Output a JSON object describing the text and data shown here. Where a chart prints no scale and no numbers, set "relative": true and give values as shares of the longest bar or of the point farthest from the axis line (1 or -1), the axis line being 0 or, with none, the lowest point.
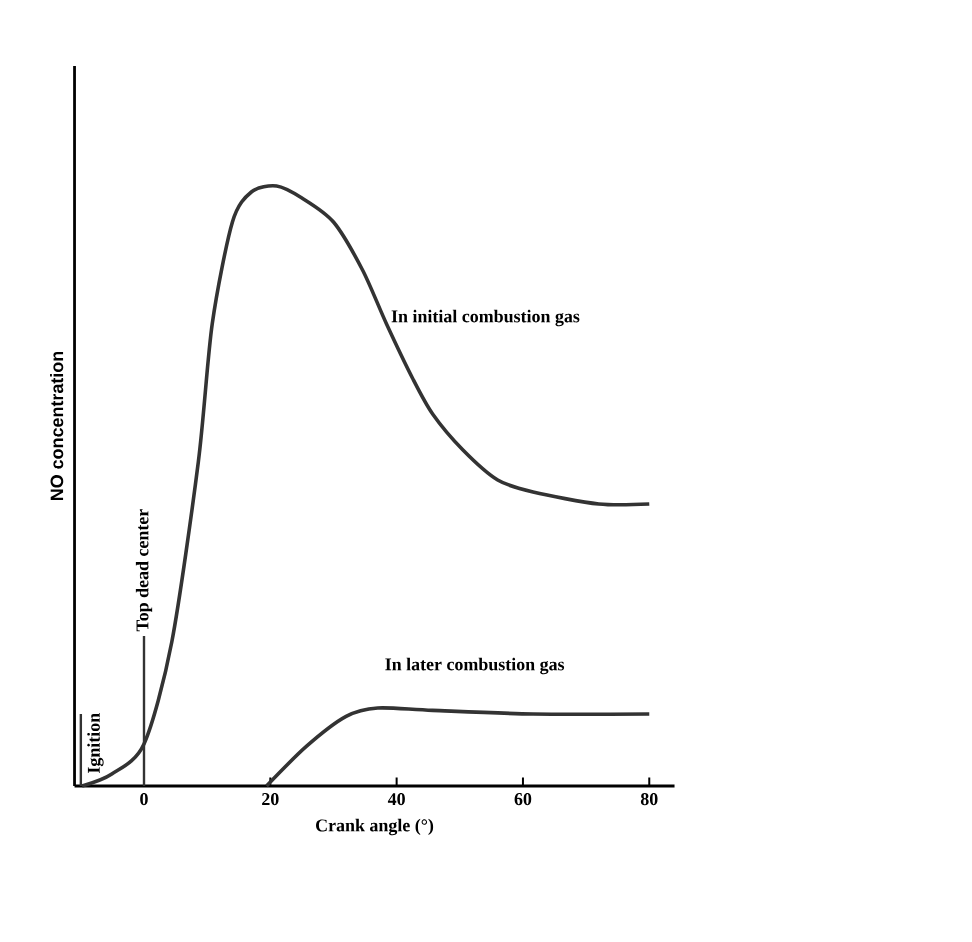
{
  "chart_data": {
    "type": "line",
    "xlabel": "Crank angle (°)",
    "ylabel": "NO concentration",
    "relative": true,
    "xlim": [
      -11,
      84
    ],
    "xticks": [
      0,
      20,
      40,
      60,
      80
    ],
    "grid": false,
    "legend": false,
    "marker": "none",
    "line_style": "solid",
    "series": [
      {
        "name": "In initial combustion gas",
        "color": "#333333",
        "x": [
          -9.8,
          -5.1,
          0,
          4.4,
          8.6,
          10.8,
          14,
          17,
          21,
          25,
          30,
          34.6,
          38.4,
          42.5,
          45.7,
          50.5,
          56,
          61.6,
          72,
          80
        ],
        "values": [
          0,
          0.02,
          0.07,
          0.24,
          0.54,
          0.77,
          0.94,
          0.99,
          1,
          0.98,
          0.94,
          0.86,
          0.77,
          0.68,
          0.62,
          0.56,
          0.51,
          0.49,
          0.47,
          0.47
        ]
      },
      {
        "name": "In later combustion gas",
        "color": "#333333",
        "x": [
          19.4,
          25.7,
          32,
          37,
          45.7,
          61.6,
          80
        ],
        "values": [
          0,
          0.066,
          0.116,
          0.13,
          0.126,
          0.12,
          0.12
        ]
      }
    ],
    "ref_lines": [
      {
        "axis": "x",
        "value": -10,
        "label": "Ignition",
        "color": "#333333"
      },
      {
        "axis": "x",
        "value": 0,
        "label": "Top dead center",
        "color": "#333333"
      }
    ]
  }
}
